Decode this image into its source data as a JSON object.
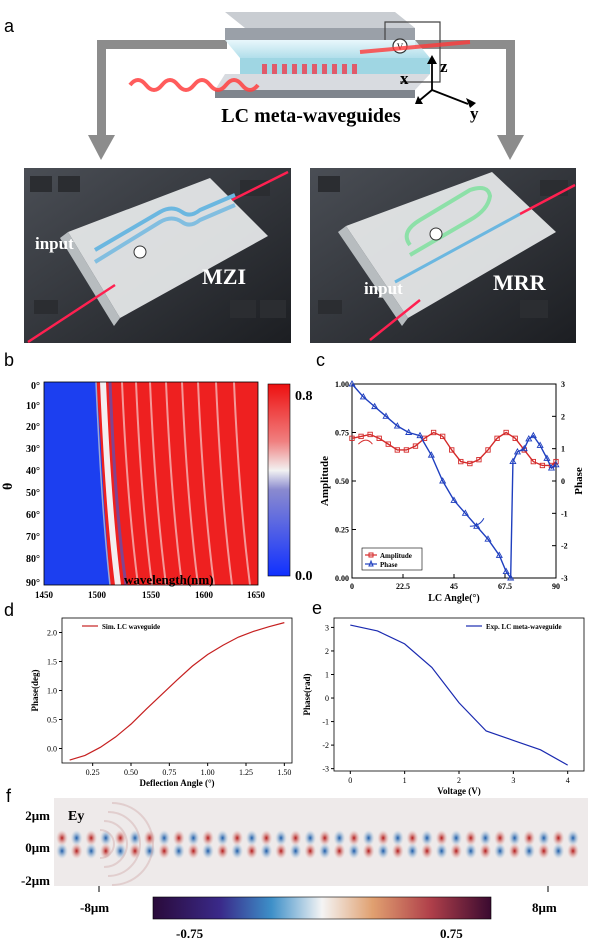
{
  "panels": {
    "a": {
      "label": "a",
      "title": "LC meta-waveguides",
      "axes": {
        "x": "x",
        "y": "y",
        "z": "z"
      },
      "voltage_symbol": "V",
      "left_chip": {
        "input_label": "input",
        "device_label": "MZI"
      },
      "right_chip": {
        "input_label": "input",
        "device_label": "MRR"
      }
    },
    "b": {
      "label": "b",
      "ylabel": "θ",
      "xlabel": "wavelength(nm)",
      "xticks": [
        "1450",
        "1500",
        "1550",
        "1600",
        "1650"
      ],
      "yticks": [
        "0°",
        "10°",
        "20°",
        "30°",
        "40°",
        "50°",
        "60°",
        "70°",
        "80°",
        "90°"
      ],
      "colorbar_ticks": [
        "0.8",
        "0.0"
      ]
    },
    "c": {
      "label": "c"
    },
    "d": {
      "label": "d"
    },
    "e": {
      "label": "e"
    },
    "f": {
      "label": "f",
      "field_label": "Ey",
      "yticks": [
        "2μm",
        "0μm",
        "-2μm"
      ],
      "x_left": "-8μm",
      "x_right": "8μm",
      "cbar_left": "-0.75",
      "cbar_right": "0.75"
    }
  },
  "chart_data": [
    {
      "id": "c",
      "type": "line",
      "xlabel": "LC Angle(°)",
      "ylabel": "Amplitude",
      "ylabel_right": "Phase",
      "xlim": [
        0,
        90
      ],
      "ylim": [
        0,
        1
      ],
      "ylim_right": [
        -3,
        3
      ],
      "xticks": [
        "0",
        "22.5",
        "45",
        "67.5",
        "90"
      ],
      "yticks": [
        "0.00",
        "0.25",
        "0.50",
        "0.75",
        "1.00"
      ],
      "yticks_right": [
        "-3",
        "-2",
        "-1",
        "0",
        "1",
        "2",
        "3"
      ],
      "legend": [
        "Amplitude",
        "Phase"
      ],
      "series": [
        {
          "name": "Amplitude",
          "color": "#d42a2a",
          "x": [
            0,
            4,
            8,
            12,
            16,
            20,
            24,
            28,
            32,
            36,
            40,
            44,
            48,
            52,
            56,
            60,
            64,
            68,
            72,
            76,
            80,
            84,
            88,
            90
          ],
          "y": [
            0.72,
            0.73,
            0.74,
            0.72,
            0.69,
            0.66,
            0.66,
            0.68,
            0.72,
            0.75,
            0.73,
            0.66,
            0.6,
            0.59,
            0.61,
            0.66,
            0.72,
            0.75,
            0.72,
            0.66,
            0.6,
            0.58,
            0.58,
            0.6
          ]
        },
        {
          "name": "Phase",
          "color": "#1f3fbf",
          "x": [
            0,
            5,
            10,
            15,
            20,
            25,
            30,
            35,
            40,
            45,
            50,
            55,
            60,
            65,
            68,
            70,
            71,
            73,
            76,
            78,
            80,
            83,
            86,
            88,
            90
          ],
          "y": [
            3.0,
            2.6,
            2.3,
            2.0,
            1.7,
            1.5,
            1.4,
            0.8,
            0.0,
            -0.6,
            -1.0,
            -1.4,
            -1.8,
            -2.3,
            -2.8,
            -3.0,
            0.6,
            0.9,
            1.0,
            1.3,
            1.4,
            1.1,
            0.7,
            0.4,
            0.5
          ]
        }
      ]
    },
    {
      "id": "d",
      "type": "line",
      "xlabel": "Deflection Angle (°)",
      "ylabel": "Phase(deg)",
      "xlim": [
        0.05,
        1.55
      ],
      "ylim": [
        -0.25,
        2.25
      ],
      "xticks": [
        0.25,
        0.5,
        0.75,
        1.0,
        1.25,
        1.5
      ],
      "xtick_labels": [
        "0.25",
        "0.50",
        "0.75",
        "1.00",
        "1.25",
        "1.50"
      ],
      "yticks": [
        0.0,
        0.5,
        1.0,
        1.5,
        2.0
      ],
      "ytick_labels": [
        "0.0",
        "0.5",
        "1.0",
        "1.5",
        "2.0"
      ],
      "legend": [
        "Sim. LC waveguide"
      ],
      "series": [
        {
          "name": "Sim. LC waveguide",
          "color": "#c62020",
          "x": [
            0.1,
            0.2,
            0.3,
            0.4,
            0.5,
            0.6,
            0.7,
            0.8,
            0.9,
            1.0,
            1.1,
            1.2,
            1.3,
            1.4,
            1.5
          ],
          "y": [
            -0.2,
            -0.12,
            0.02,
            0.2,
            0.42,
            0.68,
            0.93,
            1.18,
            1.42,
            1.62,
            1.78,
            1.92,
            2.02,
            2.1,
            2.17
          ]
        }
      ]
    },
    {
      "id": "e",
      "type": "line",
      "xlabel": "Voltage (V)",
      "ylabel": "Phase(rad)",
      "xlim": [
        -0.3,
        4.3
      ],
      "ylim": [
        -3.1,
        3.4
      ],
      "xticks": [
        0,
        1,
        2,
        3,
        4
      ],
      "xtick_labels": [
        "0",
        "1",
        "2",
        "3",
        "4"
      ],
      "yticks": [
        -3,
        -2,
        -1,
        0,
        1,
        2,
        3
      ],
      "ytick_labels": [
        "-3",
        "-2",
        "-1",
        "0",
        "1",
        "2",
        "3"
      ],
      "legend": [
        "Exp. LC meta-waveguide"
      ],
      "series": [
        {
          "name": "Exp. LC meta-waveguide",
          "color": "#1a2ab0",
          "x": [
            0,
            0.5,
            1.0,
            1.5,
            2.0,
            2.5,
            3.0,
            3.5,
            4.0
          ],
          "y": [
            3.1,
            2.85,
            2.3,
            1.3,
            -0.2,
            -1.4,
            -1.8,
            -2.2,
            -2.85
          ]
        }
      ]
    }
  ]
}
